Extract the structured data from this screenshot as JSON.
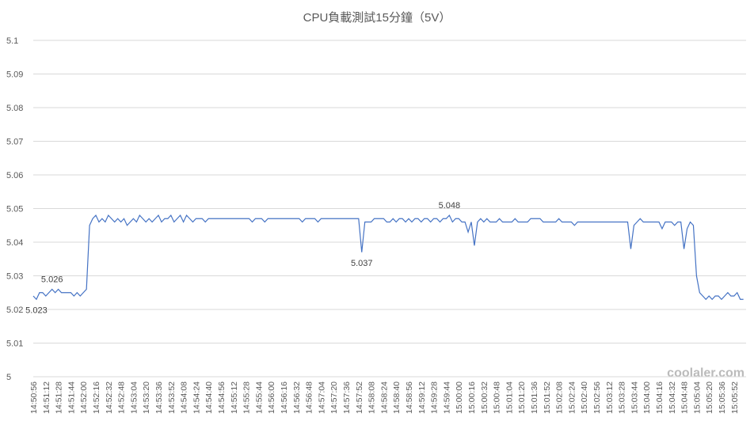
{
  "chart_data": {
    "type": "line",
    "title": "CPU負載測試15分鐘（5V）",
    "categories": [
      "14:50:56",
      null,
      null,
      null,
      "14:51:12",
      null,
      null,
      null,
      "14:51:28",
      null,
      null,
      null,
      "14:51:44",
      null,
      null,
      null,
      "14:52:00",
      null,
      null,
      null,
      "14:52:16",
      null,
      null,
      null,
      "14:52:32",
      null,
      null,
      null,
      "14:52:48",
      null,
      null,
      null,
      "14:53:04",
      null,
      null,
      null,
      "14:53:20",
      null,
      null,
      null,
      "14:53:36",
      null,
      null,
      null,
      "14:53:52",
      null,
      null,
      null,
      "14:54:08",
      null,
      null,
      null,
      "14:54:24",
      null,
      null,
      null,
      "14:54:40",
      null,
      null,
      null,
      "14:54:56",
      null,
      null,
      null,
      "14:55:12",
      null,
      null,
      null,
      "14:55:28",
      null,
      null,
      null,
      "14:55:44",
      null,
      null,
      null,
      "14:56:00",
      null,
      null,
      null,
      "14:56:16",
      null,
      null,
      null,
      "14:56:32",
      null,
      null,
      null,
      "14:56:48",
      null,
      null,
      null,
      "14:57:04",
      null,
      null,
      null,
      "14:57:20",
      null,
      null,
      null,
      "14:57:36",
      null,
      null,
      null,
      "14:57:52",
      null,
      null,
      null,
      "14:58:08",
      null,
      null,
      null,
      "14:58:24",
      null,
      null,
      null,
      "14:58:40",
      null,
      null,
      null,
      "14:58:56",
      null,
      null,
      null,
      "14:59:12",
      null,
      null,
      null,
      "14:59:28",
      null,
      null,
      null,
      "14:59:44",
      null,
      null,
      null,
      "15:00:00",
      null,
      null,
      null,
      "15:00:16",
      null,
      null,
      null,
      "15:00:32",
      null,
      null,
      null,
      "15:00:48",
      null,
      null,
      null,
      "15:01:04",
      null,
      null,
      null,
      "15:01:20",
      null,
      null,
      null,
      "15:01:36",
      null,
      null,
      null,
      "15:01:52",
      null,
      null,
      null,
      "15:02:08",
      null,
      null,
      null,
      "15:02:24",
      null,
      null,
      null,
      "15:02:40",
      null,
      null,
      null,
      "15:02:56",
      null,
      null,
      null,
      "15:03:12",
      null,
      null,
      null,
      "15:03:28",
      null,
      null,
      null,
      "15:03:44",
      null,
      null,
      null,
      "15:04:00",
      null,
      null,
      null,
      "15:04:16",
      null,
      null,
      null,
      "15:04:32",
      null,
      null,
      null,
      "15:04:48",
      null,
      null,
      null,
      "15:05:04",
      null,
      null,
      null,
      "15:05:20",
      null,
      null,
      null,
      "15:05:36",
      null,
      null,
      null,
      "15:05:52",
      null,
      null,
      null
    ],
    "values": [
      5.024,
      5.023,
      5.025,
      5.025,
      5.024,
      5.025,
      5.026,
      5.025,
      5.026,
      5.025,
      5.025,
      5.025,
      5.025,
      5.024,
      5.025,
      5.024,
      5.025,
      5.026,
      5.045,
      5.047,
      5.048,
      5.046,
      5.047,
      5.046,
      5.048,
      5.047,
      5.046,
      5.047,
      5.046,
      5.047,
      5.045,
      5.046,
      5.047,
      5.046,
      5.048,
      5.047,
      5.046,
      5.047,
      5.046,
      5.047,
      5.048,
      5.046,
      5.047,
      5.047,
      5.048,
      5.046,
      5.047,
      5.048,
      5.046,
      5.048,
      5.047,
      5.046,
      5.047,
      5.047,
      5.047,
      5.046,
      5.047,
      5.047,
      5.047,
      5.047,
      5.047,
      5.047,
      5.047,
      5.047,
      5.047,
      5.047,
      5.047,
      5.047,
      5.047,
      5.047,
      5.046,
      5.047,
      5.047,
      5.047,
      5.046,
      5.047,
      5.047,
      5.047,
      5.047,
      5.047,
      5.047,
      5.047,
      5.047,
      5.047,
      5.047,
      5.047,
      5.046,
      5.047,
      5.047,
      5.047,
      5.047,
      5.046,
      5.047,
      5.047,
      5.047,
      5.047,
      5.047,
      5.047,
      5.047,
      5.047,
      5.047,
      5.047,
      5.047,
      5.047,
      5.047,
      5.037,
      5.046,
      5.046,
      5.046,
      5.047,
      5.047,
      5.047,
      5.047,
      5.046,
      5.046,
      5.047,
      5.046,
      5.047,
      5.047,
      5.046,
      5.047,
      5.046,
      5.047,
      5.047,
      5.046,
      5.047,
      5.047,
      5.046,
      5.047,
      5.047,
      5.046,
      5.047,
      5.047,
      5.048,
      5.046,
      5.047,
      5.047,
      5.046,
      5.046,
      5.043,
      5.046,
      5.039,
      5.046,
      5.047,
      5.046,
      5.047,
      5.046,
      5.046,
      5.046,
      5.047,
      5.046,
      5.046,
      5.046,
      5.046,
      5.047,
      5.046,
      5.046,
      5.046,
      5.046,
      5.047,
      5.047,
      5.047,
      5.047,
      5.046,
      5.046,
      5.046,
      5.046,
      5.046,
      5.047,
      5.046,
      5.046,
      5.046,
      5.046,
      5.045,
      5.046,
      5.046,
      5.046,
      5.046,
      5.046,
      5.046,
      5.046,
      5.046,
      5.046,
      5.046,
      5.046,
      5.046,
      5.046,
      5.046,
      5.046,
      5.046,
      5.046,
      5.038,
      5.045,
      5.046,
      5.047,
      5.046,
      5.046,
      5.046,
      5.046,
      5.046,
      5.046,
      5.044,
      5.046,
      5.046,
      5.046,
      5.045,
      5.046,
      5.046,
      5.038,
      5.044,
      5.046,
      5.045,
      5.03,
      5.025,
      5.024,
      5.023,
      5.024,
      5.023,
      5.024,
      5.024,
      5.023,
      5.024,
      5.025,
      5.024,
      5.024,
      5.025,
      5.023,
      5.023
    ],
    "color": "#4472c4",
    "annotations": [
      {
        "text": "5.023",
        "point": 1,
        "side": "below"
      },
      {
        "text": "5.026",
        "point": 6,
        "side": "above"
      },
      {
        "text": "5.037",
        "point": 105,
        "side": "below"
      },
      {
        "text": "5.048",
        "point": 133,
        "side": "above"
      }
    ],
    "ylim": [
      5,
      5.1
    ],
    "yticks": [
      5,
      5.01,
      5.02,
      5.03,
      5.04,
      5.05,
      5.06,
      5.07,
      5.08,
      5.09,
      5.1
    ],
    "grid": true
  },
  "watermark": "coolaler.com"
}
